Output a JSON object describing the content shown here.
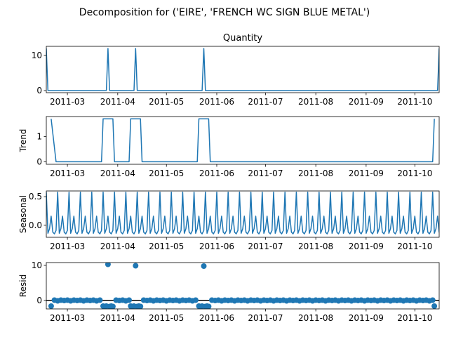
{
  "chart_data": {
    "type": "line",
    "title": "Decomposition for ('EIRE', 'FRENCH WC SIGN BLUE METAL')",
    "x_start": "2011-02-16",
    "x_end": "2011-10-16",
    "x_ticks": [
      "2011-03",
      "2011-04",
      "2011-05",
      "2011-06",
      "2011-07",
      "2011-08",
      "2011-09",
      "2011-10"
    ],
    "panels": [
      {
        "name": "observed",
        "title": "Quantity",
        "ylabel": "",
        "ylim": [
          -0.6,
          12.6
        ],
        "yticks": [
          0,
          10
        ],
        "style": "line",
        "series": [
          {
            "x": "2011-02-16",
            "y": 12
          },
          {
            "x": "2011-02-17",
            "y": 0
          },
          {
            "x": "2011-03-25",
            "y": 0
          },
          {
            "x": "2011-03-26",
            "y": 12
          },
          {
            "x": "2011-03-27",
            "y": 0
          },
          {
            "x": "2011-04-11",
            "y": 0
          },
          {
            "x": "2011-04-12",
            "y": 12
          },
          {
            "x": "2011-04-13",
            "y": 0
          },
          {
            "x": "2011-05-23",
            "y": 0
          },
          {
            "x": "2011-05-24",
            "y": 12
          },
          {
            "x": "2011-05-25",
            "y": 0
          },
          {
            "x": "2011-10-15",
            "y": 0
          },
          {
            "x": "2011-10-16",
            "y": 12
          }
        ]
      },
      {
        "name": "trend",
        "title": "",
        "ylabel": "Trend",
        "ylim": [
          -0.1,
          1.8
        ],
        "yticks": [
          0,
          1
        ],
        "style": "line",
        "series": [
          {
            "x": "2011-02-19",
            "y": 1.71
          },
          {
            "x": "2011-02-22",
            "y": 0
          },
          {
            "x": "2011-03-22",
            "y": 0
          },
          {
            "x": "2011-03-23",
            "y": 1.71
          },
          {
            "x": "2011-03-29",
            "y": 1.71
          },
          {
            "x": "2011-03-30",
            "y": 0
          },
          {
            "x": "2011-04-08",
            "y": 0
          },
          {
            "x": "2011-04-09",
            "y": 1.71
          },
          {
            "x": "2011-04-15",
            "y": 1.71
          },
          {
            "x": "2011-04-16",
            "y": 0
          },
          {
            "x": "2011-05-20",
            "y": 0
          },
          {
            "x": "2011-05-21",
            "y": 1.71
          },
          {
            "x": "2011-05-27",
            "y": 1.71
          },
          {
            "x": "2011-05-28",
            "y": 0
          },
          {
            "x": "2011-10-12",
            "y": 0
          },
          {
            "x": "2011-10-13",
            "y": 1.71
          }
        ]
      },
      {
        "name": "seasonal",
        "title": "",
        "ylabel": "Seasonal",
        "ylim": [
          -0.21,
          0.6
        ],
        "yticks": [
          0.0,
          0.5
        ],
        "yformat": 1,
        "style": "periodic",
        "period_days": 7,
        "first_day": "2011-02-16",
        "pattern": [
          0.58,
          -0.14,
          -0.06,
          0.16,
          -0.12,
          -0.15,
          -0.09
        ]
      },
      {
        "name": "resid",
        "title": "",
        "ylabel": "Resid",
        "ylim": [
          -2.4,
          10.8
        ],
        "yticks": [
          0,
          10
        ],
        "style": "scatter",
        "zero_line": true,
        "series": [
          {
            "x": "2011-02-19",
            "y": -1.6
          },
          {
            "x": "2011-02-21",
            "y": 0.1
          },
          {
            "x": "2011-02-23",
            "y": -0.1
          },
          {
            "x": "2011-02-25",
            "y": 0.1
          },
          {
            "x": "2011-02-27",
            "y": 0.0
          },
          {
            "x": "2011-03-01",
            "y": 0.1
          },
          {
            "x": "2011-03-03",
            "y": -0.1
          },
          {
            "x": "2011-03-05",
            "y": 0.1
          },
          {
            "x": "2011-03-07",
            "y": 0.0
          },
          {
            "x": "2011-03-09",
            "y": 0.1
          },
          {
            "x": "2011-03-11",
            "y": -0.1
          },
          {
            "x": "2011-03-13",
            "y": 0.1
          },
          {
            "x": "2011-03-15",
            "y": 0.0
          },
          {
            "x": "2011-03-17",
            "y": 0.1
          },
          {
            "x": "2011-03-19",
            "y": -0.1
          },
          {
            "x": "2011-03-21",
            "y": 0.1
          },
          {
            "x": "2011-03-23",
            "y": -1.6
          },
          {
            "x": "2011-03-24",
            "y": -1.7
          },
          {
            "x": "2011-03-25",
            "y": -1.6
          },
          {
            "x": "2011-03-26",
            "y": 10.3
          },
          {
            "x": "2011-03-27",
            "y": -1.7
          },
          {
            "x": "2011-03-28",
            "y": -1.6
          },
          {
            "x": "2011-03-29",
            "y": -1.7
          },
          {
            "x": "2011-03-31",
            "y": 0.1
          },
          {
            "x": "2011-04-02",
            "y": 0.0
          },
          {
            "x": "2011-04-04",
            "y": 0.1
          },
          {
            "x": "2011-04-06",
            "y": -0.1
          },
          {
            "x": "2011-04-08",
            "y": 0.1
          },
          {
            "x": "2011-04-09",
            "y": -1.6
          },
          {
            "x": "2011-04-10",
            "y": -1.7
          },
          {
            "x": "2011-04-11",
            "y": -1.6
          },
          {
            "x": "2011-04-12",
            "y": 9.9
          },
          {
            "x": "2011-04-13",
            "y": -1.7
          },
          {
            "x": "2011-04-14",
            "y": -1.6
          },
          {
            "x": "2011-04-15",
            "y": -1.7
          },
          {
            "x": "2011-04-17",
            "y": 0.1
          },
          {
            "x": "2011-04-19",
            "y": 0.0
          },
          {
            "x": "2011-04-21",
            "y": 0.1
          },
          {
            "x": "2011-04-23",
            "y": -0.1
          },
          {
            "x": "2011-04-25",
            "y": 0.1
          },
          {
            "x": "2011-04-27",
            "y": 0.0
          },
          {
            "x": "2011-04-29",
            "y": 0.1
          },
          {
            "x": "2011-05-01",
            "y": -0.1
          },
          {
            "x": "2011-05-03",
            "y": 0.1
          },
          {
            "x": "2011-05-05",
            "y": 0.0
          },
          {
            "x": "2011-05-07",
            "y": 0.1
          },
          {
            "x": "2011-05-09",
            "y": -0.1
          },
          {
            "x": "2011-05-11",
            "y": 0.1
          },
          {
            "x": "2011-05-13",
            "y": 0.0
          },
          {
            "x": "2011-05-15",
            "y": 0.1
          },
          {
            "x": "2011-05-17",
            "y": -0.1
          },
          {
            "x": "2011-05-19",
            "y": 0.1
          },
          {
            "x": "2011-05-21",
            "y": -1.6
          },
          {
            "x": "2011-05-22",
            "y": -1.7
          },
          {
            "x": "2011-05-23",
            "y": -1.6
          },
          {
            "x": "2011-05-24",
            "y": 9.8
          },
          {
            "x": "2011-05-25",
            "y": -1.7
          },
          {
            "x": "2011-05-26",
            "y": -1.6
          },
          {
            "x": "2011-05-27",
            "y": -1.7
          },
          {
            "x": "2011-05-29",
            "y": 0.1
          },
          {
            "x": "2011-05-31",
            "y": 0.0
          },
          {
            "x": "2011-06-02",
            "y": 0.1
          },
          {
            "x": "2011-06-04",
            "y": -0.1
          },
          {
            "x": "2011-06-06",
            "y": 0.1
          },
          {
            "x": "2011-06-08",
            "y": 0.0
          },
          {
            "x": "2011-06-10",
            "y": 0.1
          },
          {
            "x": "2011-06-12",
            "y": -0.1
          },
          {
            "x": "2011-06-14",
            "y": 0.1
          },
          {
            "x": "2011-06-16",
            "y": 0.0
          },
          {
            "x": "2011-06-18",
            "y": 0.1
          },
          {
            "x": "2011-06-20",
            "y": -0.1
          },
          {
            "x": "2011-06-22",
            "y": 0.1
          },
          {
            "x": "2011-06-24",
            "y": 0.0
          },
          {
            "x": "2011-06-26",
            "y": 0.1
          },
          {
            "x": "2011-06-28",
            "y": -0.1
          },
          {
            "x": "2011-06-30",
            "y": 0.1
          },
          {
            "x": "2011-07-02",
            "y": 0.0
          },
          {
            "x": "2011-07-04",
            "y": 0.1
          },
          {
            "x": "2011-07-06",
            "y": -0.1
          },
          {
            "x": "2011-07-08",
            "y": 0.1
          },
          {
            "x": "2011-07-10",
            "y": 0.0
          },
          {
            "x": "2011-07-12",
            "y": 0.1
          },
          {
            "x": "2011-07-14",
            "y": -0.1
          },
          {
            "x": "2011-07-16",
            "y": 0.1
          },
          {
            "x": "2011-07-18",
            "y": 0.0
          },
          {
            "x": "2011-07-20",
            "y": 0.1
          },
          {
            "x": "2011-07-22",
            "y": -0.1
          },
          {
            "x": "2011-07-24",
            "y": 0.1
          },
          {
            "x": "2011-07-26",
            "y": 0.0
          },
          {
            "x": "2011-07-28",
            "y": 0.1
          },
          {
            "x": "2011-07-30",
            "y": -0.1
          },
          {
            "x": "2011-08-01",
            "y": 0.1
          },
          {
            "x": "2011-08-03",
            "y": 0.0
          },
          {
            "x": "2011-08-05",
            "y": 0.1
          },
          {
            "x": "2011-08-07",
            "y": -0.1
          },
          {
            "x": "2011-08-09",
            "y": 0.1
          },
          {
            "x": "2011-08-11",
            "y": 0.0
          },
          {
            "x": "2011-08-13",
            "y": 0.1
          },
          {
            "x": "2011-08-15",
            "y": -0.1
          },
          {
            "x": "2011-08-17",
            "y": 0.1
          },
          {
            "x": "2011-08-19",
            "y": 0.0
          },
          {
            "x": "2011-08-21",
            "y": 0.1
          },
          {
            "x": "2011-08-23",
            "y": -0.1
          },
          {
            "x": "2011-08-25",
            "y": 0.1
          },
          {
            "x": "2011-08-27",
            "y": 0.0
          },
          {
            "x": "2011-08-29",
            "y": 0.1
          },
          {
            "x": "2011-08-31",
            "y": -0.1
          },
          {
            "x": "2011-09-02",
            "y": 0.1
          },
          {
            "x": "2011-09-04",
            "y": 0.0
          },
          {
            "x": "2011-09-06",
            "y": 0.1
          },
          {
            "x": "2011-09-08",
            "y": -0.1
          },
          {
            "x": "2011-09-10",
            "y": 0.1
          },
          {
            "x": "2011-09-12",
            "y": 0.0
          },
          {
            "x": "2011-09-14",
            "y": 0.1
          },
          {
            "x": "2011-09-16",
            "y": -0.1
          },
          {
            "x": "2011-09-18",
            "y": 0.1
          },
          {
            "x": "2011-09-20",
            "y": 0.0
          },
          {
            "x": "2011-09-22",
            "y": 0.1
          },
          {
            "x": "2011-09-24",
            "y": -0.1
          },
          {
            "x": "2011-09-26",
            "y": 0.1
          },
          {
            "x": "2011-09-28",
            "y": 0.0
          },
          {
            "x": "2011-09-30",
            "y": 0.1
          },
          {
            "x": "2011-10-02",
            "y": -0.1
          },
          {
            "x": "2011-10-04",
            "y": 0.1
          },
          {
            "x": "2011-10-06",
            "y": 0.0
          },
          {
            "x": "2011-10-08",
            "y": 0.1
          },
          {
            "x": "2011-10-10",
            "y": -0.1
          },
          {
            "x": "2011-10-12",
            "y": 0.1
          },
          {
            "x": "2011-10-13",
            "y": -1.6
          }
        ]
      }
    ],
    "grid": false,
    "colors": {
      "series": "#1f77b4",
      "axes": "#000000",
      "background": "#ffffff"
    }
  }
}
